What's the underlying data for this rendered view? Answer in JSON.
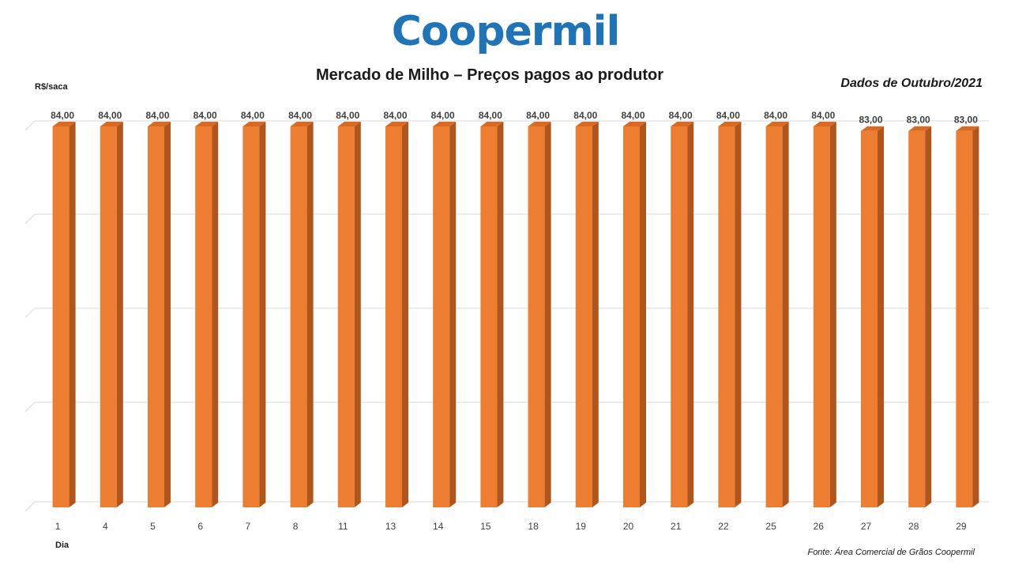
{
  "logo_text": "Coopermil",
  "colors": {
    "logo": "#1f73b7",
    "bar_front": "#ed7d31",
    "bar_side": "#b0561d",
    "bar_top": "#d96a24",
    "grid": "#d9d9d9"
  },
  "chart_data": {
    "type": "bar",
    "title": "Mercado de Milho – Preços pagos ao produtor",
    "subtitle": "Dados de Outubro/2021",
    "ylabel": "R$/saca",
    "xlabel": "Dia",
    "source": "Fonte: Área Comercial  de Grãos Coopermil",
    "categories": [
      "1",
      "4",
      "5",
      "6",
      "7",
      "8",
      "11",
      "13",
      "14",
      "15",
      "18",
      "19",
      "20",
      "21",
      "22",
      "25",
      "26",
      "27",
      "28",
      "29"
    ],
    "values": [
      84,
      84,
      84,
      84,
      84,
      84,
      84,
      84,
      84,
      84,
      84,
      84,
      84,
      84,
      84,
      84,
      84,
      83,
      83,
      83
    ],
    "value_labels": [
      "84,00",
      "84,00",
      "84,00",
      "84,00",
      "84,00",
      "84,00",
      "84,00",
      "84,00",
      "84,00",
      "84,00",
      "84,00",
      "84,00",
      "84,00",
      "84,00",
      "84,00",
      "84,00",
      "84,00",
      "83,00",
      "83,00",
      "83,00"
    ],
    "ylim": [
      0,
      84
    ],
    "grid": true,
    "style": "3d-columns"
  }
}
